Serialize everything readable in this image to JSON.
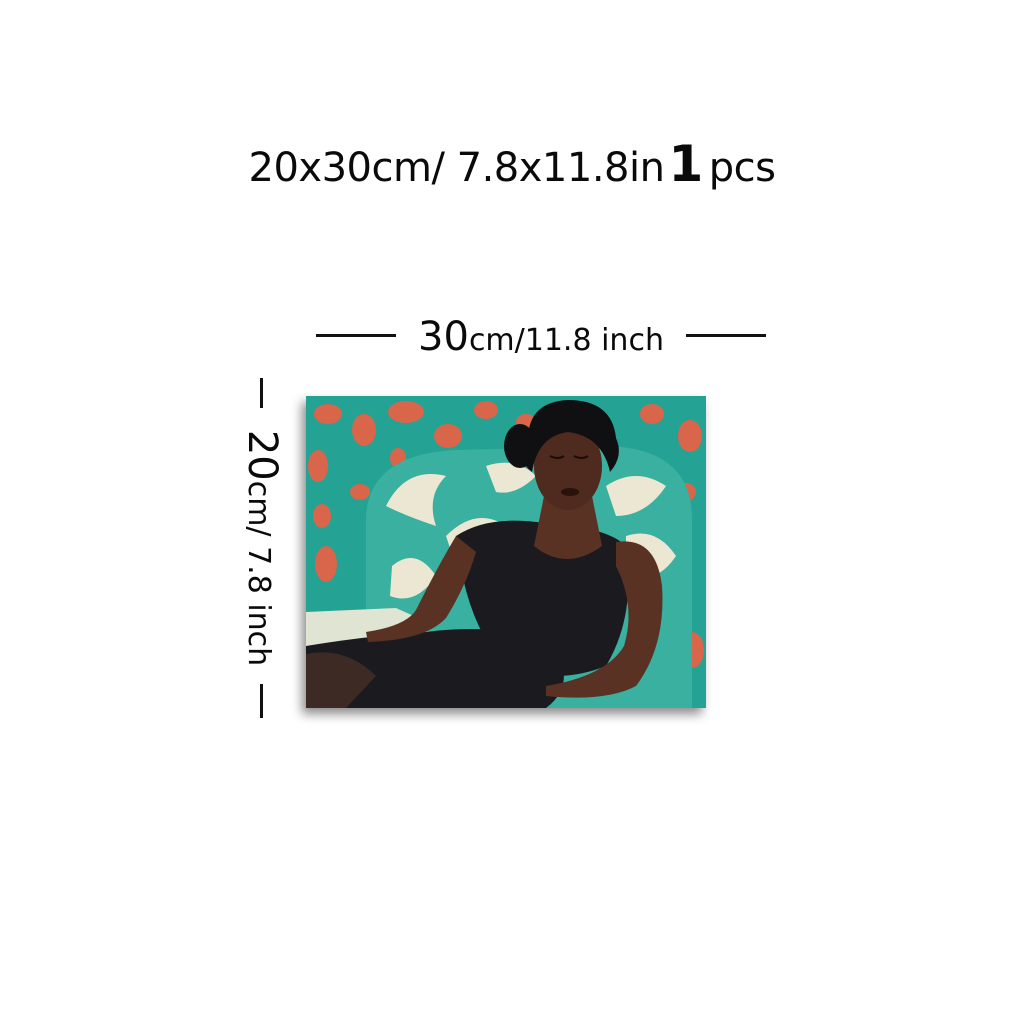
{
  "headline": {
    "size": "20x30cm/ 7.8x11.8in",
    "quantity": "1",
    "quantity_unit": "pcs"
  },
  "width_dimension": {
    "value": "30",
    "unit": "cm/11.8 inch"
  },
  "height_dimension": {
    "value": "20",
    "unit": "cm/ 7.8 inch"
  },
  "artwork": {
    "subject": "woman-reclining-on-armchair",
    "colors": {
      "background_teal": "#24a293",
      "leopard_spots": "#d9664a",
      "chair_pattern_light": "#ece7d2",
      "chair_teal": "#39b0a0",
      "dress": "#1b1b1f",
      "skin": "#5a3224"
    }
  }
}
